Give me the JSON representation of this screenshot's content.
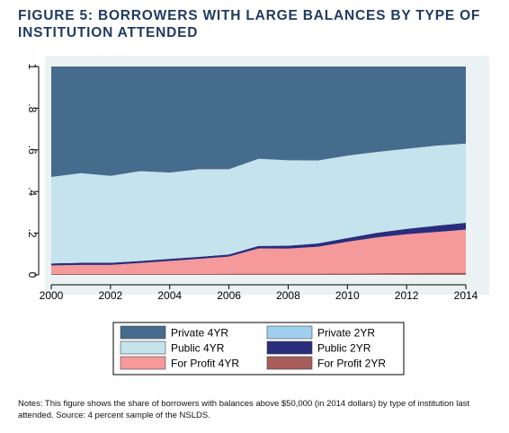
{
  "figure": {
    "title": "FIGURE 5: BORROWERS WITH LARGE BALANCES BY TYPE OF INSTITUTION ATTENDED",
    "notes": "Notes: This figure shows the share of borrowers with balances above $50,000 (in 2014 dollars) by type of institution last attended. Source: 4 percent sample of the NSLDS."
  },
  "chart_data": {
    "type": "area",
    "stacked": true,
    "title": "FIGURE 5: BORROWERS WITH LARGE BALANCES BY TYPE OF INSTITUTION ATTENDED",
    "xlabel": "",
    "ylabel": "",
    "x": [
      2000,
      2001,
      2002,
      2003,
      2004,
      2005,
      2006,
      2007,
      2008,
      2009,
      2010,
      2011,
      2012,
      2013,
      2014
    ],
    "xlim": [
      2000,
      2014
    ],
    "ylim": [
      0,
      1
    ],
    "xticks": [
      2000,
      2002,
      2004,
      2006,
      2008,
      2010,
      2012,
      2014
    ],
    "xtick_labels": [
      "2000",
      "2002",
      "2004",
      "2006",
      "2008",
      "2010",
      "2012",
      "2014"
    ],
    "yticks": [
      0,
      0.2,
      0.4,
      0.6,
      0.8,
      1
    ],
    "ytick_labels": [
      "0",
      ".2",
      ".4",
      ".6",
      ".8",
      "1"
    ],
    "grid": "horizontal",
    "legend_position": "bottom",
    "series": [
      {
        "name": "For Profit 2YR",
        "color": "#a85c5c",
        "values": [
          0.005,
          0.005,
          0.005,
          0.005,
          0.005,
          0.005,
          0.006,
          0.006,
          0.006,
          0.006,
          0.007,
          0.008,
          0.009,
          0.01,
          0.01
        ]
      },
      {
        "name": "For Profit 4YR",
        "color": "#f5999b",
        "values": [
          0.04,
          0.043,
          0.043,
          0.052,
          0.062,
          0.072,
          0.082,
          0.121,
          0.12,
          0.129,
          0.152,
          0.172,
          0.186,
          0.196,
          0.207
        ]
      },
      {
        "name": "Public 2YR",
        "color": "#2a2d7c",
        "values": [
          0.01,
          0.01,
          0.01,
          0.01,
          0.01,
          0.01,
          0.01,
          0.012,
          0.014,
          0.016,
          0.018,
          0.022,
          0.026,
          0.03,
          0.033
        ]
      },
      {
        "name": "Public 4YR",
        "color": "#c5e3ed",
        "values": [
          0.415,
          0.43,
          0.417,
          0.431,
          0.414,
          0.42,
          0.409,
          0.418,
          0.41,
          0.398,
          0.395,
          0.388,
          0.384,
          0.384,
          0.38
        ]
      },
      {
        "name": "Private 2YR",
        "color": "#9fd0ee",
        "values": [
          0,
          0,
          0,
          0,
          0,
          0,
          0,
          0,
          0,
          0,
          0,
          0,
          0,
          0,
          0
        ]
      },
      {
        "name": "Private 4YR",
        "color": "#456b8d",
        "values": [
          0.53,
          0.512,
          0.525,
          0.502,
          0.509,
          0.493,
          0.493,
          0.443,
          0.45,
          0.451,
          0.428,
          0.41,
          0.395,
          0.38,
          0.37
        ]
      }
    ],
    "legend": [
      {
        "name": "Private 4YR",
        "color": "#456b8d"
      },
      {
        "name": "Private 2YR",
        "color": "#9fd0ee"
      },
      {
        "name": "Public 4YR",
        "color": "#c5e3ed"
      },
      {
        "name": "Public 2YR",
        "color": "#2a2d7c"
      },
      {
        "name": "For Profit 4YR",
        "color": "#f5999b"
      },
      {
        "name": "For Profit 2YR",
        "color": "#a85c5c"
      }
    ]
  }
}
